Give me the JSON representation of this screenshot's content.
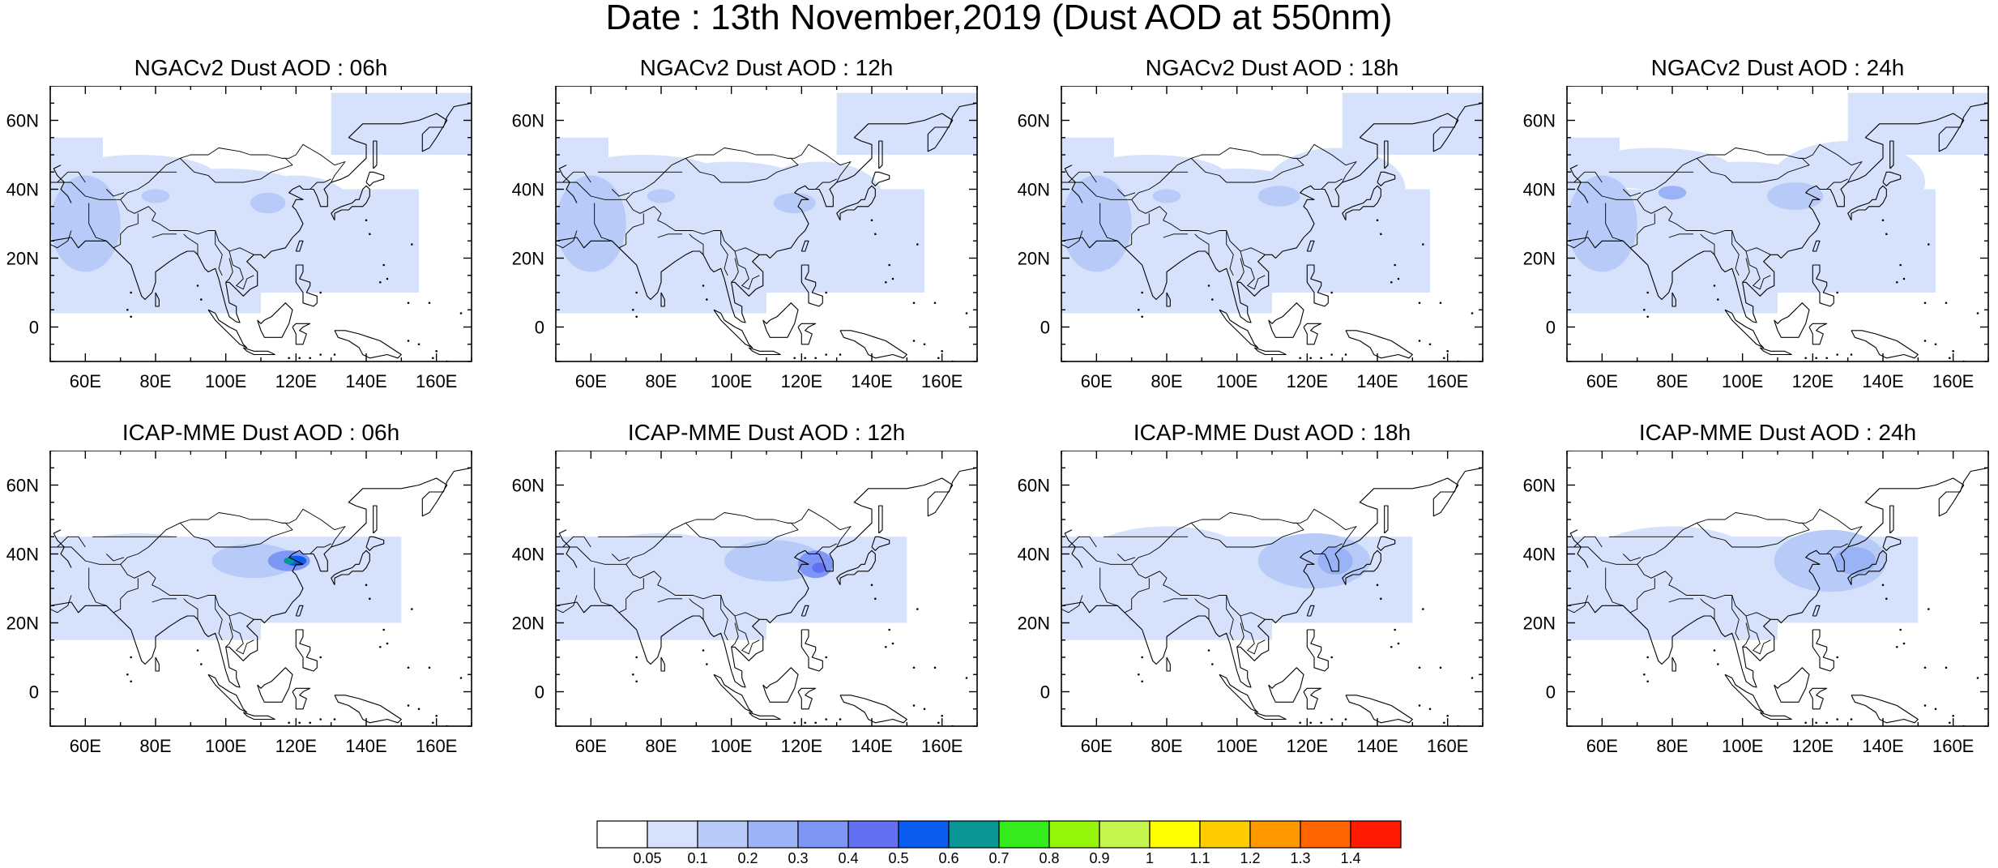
{
  "title": "Date : 13th November,2019 (Dust AOD at 550nm)",
  "panels": [
    {
      "title": "NGACv2 Dust AOD : 06h",
      "model": "NGACv2",
      "hour": "06h",
      "blobs": [
        [
          85,
          30,
          30,
          10,
          1
        ],
        [
          100,
          40,
          22,
          6,
          1
        ],
        [
          75,
          44,
          22,
          6,
          1
        ],
        [
          120,
          35,
          16,
          9,
          1
        ],
        [
          60,
          30,
          10,
          14,
          2
        ],
        [
          80,
          38,
          4,
          2,
          2
        ],
        [
          112,
          36,
          5,
          3,
          2
        ]
      ]
    },
    {
      "title": "NGACv2 Dust AOD : 12h",
      "model": "NGACv2",
      "hour": "12h",
      "blobs": [
        [
          85,
          30,
          30,
          10,
          1
        ],
        [
          100,
          42,
          20,
          6,
          1
        ],
        [
          75,
          44,
          22,
          6,
          1
        ],
        [
          125,
          38,
          18,
          10,
          1
        ],
        [
          60,
          30,
          10,
          14,
          2
        ],
        [
          80,
          38,
          4,
          2,
          2
        ],
        [
          118,
          36,
          6,
          3,
          2
        ]
      ]
    },
    {
      "title": "NGACv2 Dust AOD : 18h",
      "model": "NGACv2",
      "hour": "18h",
      "blobs": [
        [
          85,
          30,
          30,
          10,
          1
        ],
        [
          100,
          40,
          20,
          6,
          1
        ],
        [
          75,
          44,
          22,
          6,
          1
        ],
        [
          128,
          40,
          20,
          12,
          1
        ],
        [
          60,
          30,
          10,
          14,
          2
        ],
        [
          80,
          38,
          4,
          2,
          2
        ],
        [
          112,
          38,
          6,
          3,
          2
        ]
      ]
    },
    {
      "title": "NGACv2 Dust AOD : 24h",
      "model": "NGACv2",
      "hour": "24h",
      "blobs": [
        [
          85,
          30,
          30,
          10,
          1
        ],
        [
          100,
          42,
          20,
          6,
          1
        ],
        [
          75,
          46,
          22,
          6,
          1
        ],
        [
          130,
          42,
          22,
          12,
          1
        ],
        [
          60,
          30,
          10,
          14,
          2
        ],
        [
          80,
          39,
          4,
          2,
          3
        ],
        [
          115,
          38,
          8,
          4,
          2
        ]
      ]
    },
    {
      "title": "ICAP-MME Dust AOD : 06h",
      "model": "ICAP-MME",
      "hour": "06h",
      "blobs": [
        [
          75,
          38,
          22,
          8,
          1
        ],
        [
          62,
          30,
          12,
          12,
          1
        ],
        [
          108,
          38,
          12,
          5,
          2
        ],
        [
          118,
          38,
          6,
          3,
          4
        ],
        [
          120,
          38,
          3,
          1.5,
          6
        ],
        [
          118,
          38,
          1.5,
          1,
          7
        ]
      ]
    },
    {
      "title": "ICAP-MME Dust AOD : 12h",
      "model": "ICAP-MME",
      "hour": "12h",
      "blobs": [
        [
          80,
          38,
          22,
          8,
          1
        ],
        [
          62,
          30,
          12,
          12,
          1
        ],
        [
          112,
          38,
          14,
          6,
          2
        ],
        [
          124,
          37,
          5,
          4,
          4
        ],
        [
          125,
          36,
          2,
          1.5,
          5
        ]
      ]
    },
    {
      "title": "ICAP-MME Dust AOD : 18h",
      "model": "ICAP-MME",
      "hour": "18h",
      "blobs": [
        [
          80,
          40,
          22,
          8,
          1
        ],
        [
          62,
          30,
          12,
          12,
          1
        ],
        [
          122,
          38,
          16,
          8,
          2
        ],
        [
          128,
          38,
          5,
          4,
          3
        ]
      ]
    },
    {
      "title": "ICAP-MME Dust AOD : 24h",
      "model": "ICAP-MME",
      "hour": "24h",
      "blobs": [
        [
          80,
          40,
          22,
          8,
          1
        ],
        [
          62,
          30,
          12,
          12,
          1
        ],
        [
          125,
          38,
          16,
          9,
          2
        ],
        [
          132,
          38,
          6,
          4,
          3
        ]
      ]
    }
  ],
  "map": {
    "lon_range": [
      50,
      170
    ],
    "lat_range": [
      -10,
      70
    ],
    "lon_ticks": [
      "60E",
      "80E",
      "100E",
      "120E",
      "140E",
      "160E"
    ],
    "lat_ticks": [
      "0",
      "20N",
      "40N",
      "60N"
    ]
  },
  "colorbar": {
    "colors": [
      "#ffffff",
      "#d6e2fb",
      "#b8cbf8",
      "#9ab3f6",
      "#7e96f5",
      "#6470f2",
      "#0b5df0",
      "#0a9696",
      "#36eb1c",
      "#94f40a",
      "#c5f54c",
      "#ffff00",
      "#ffcc00",
      "#ff9900",
      "#ff6600",
      "#ff1a00"
    ],
    "labels": [
      "0.05",
      "0.1",
      "0.2",
      "0.3",
      "0.4",
      "0.5",
      "0.6",
      "0.7",
      "0.8",
      "0.9",
      "1",
      "1.1",
      "1.2",
      "1.3",
      "1.4"
    ]
  }
}
